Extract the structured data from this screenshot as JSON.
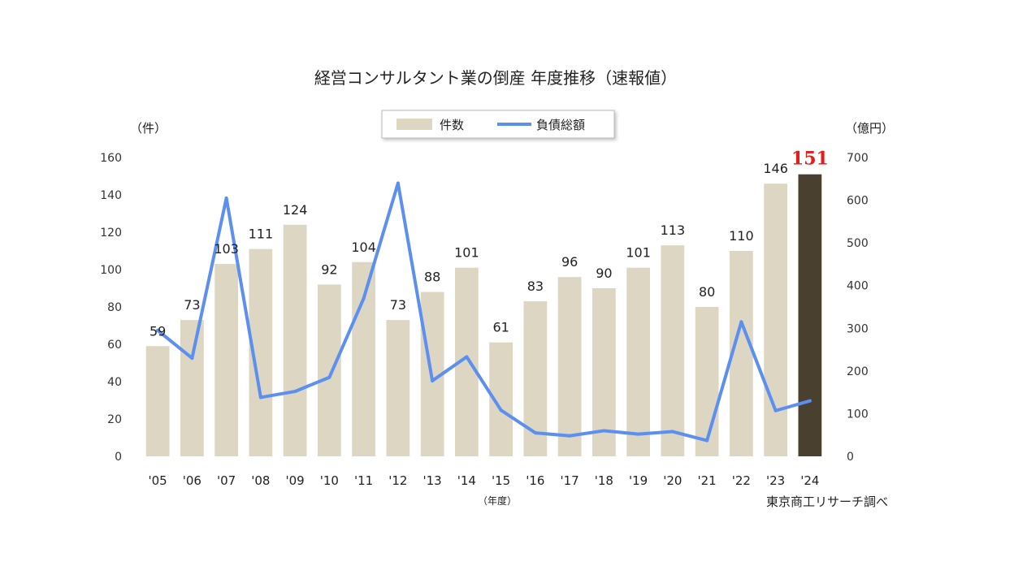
{
  "chart_data": {
    "type": "bar+line",
    "title": "経営コンサルタント業の倒産 年度推移（速報値）",
    "left_axis_unit": "（件）",
    "right_axis_unit": "（億円）",
    "x_unit": "（年度）",
    "source": "東京商工リサーチ調べ",
    "categories": [
      "'05",
      "'06",
      "'07",
      "'08",
      "'09",
      "'10",
      "'11",
      "'12",
      "'13",
      "'14",
      "'15",
      "'16",
      "'17",
      "'18",
      "'19",
      "'20",
      "'21",
      "'22",
      "'23",
      "'24"
    ],
    "series": [
      {
        "name": "件数",
        "type": "bar",
        "axis": "left",
        "color": "#ddd6c2",
        "highlight_color": "#4a4030",
        "highlight_index": 19,
        "values": [
          59,
          73,
          103,
          111,
          124,
          92,
          104,
          73,
          88,
          101,
          61,
          83,
          96,
          90,
          101,
          113,
          80,
          110,
          146,
          151
        ],
        "labels": [
          "59",
          "73",
          "103",
          "111",
          "124",
          "92",
          "104",
          "73",
          "88",
          "101",
          "61",
          "83",
          "96",
          "90",
          "101",
          "113",
          "80",
          "110",
          "146",
          "151"
        ]
      },
      {
        "name": "負債総額",
        "type": "line",
        "axis": "right",
        "color": "#5b8ff0",
        "values": [
          295,
          230,
          605,
          138,
          152,
          185,
          370,
          640,
          177,
          233,
          108,
          55,
          48,
          60,
          52,
          58,
          37,
          315,
          107,
          130
        ]
      }
    ],
    "left_axis": {
      "min": 0,
      "max": 160,
      "ticks": [
        "0",
        "20",
        "40",
        "60",
        "80",
        "100",
        "120",
        "140",
        "160"
      ]
    },
    "right_axis": {
      "min": 0,
      "max": 700,
      "ticks": [
        "0",
        "100",
        "200",
        "300",
        "400",
        "500",
        "600",
        "700"
      ]
    },
    "legend_position": "top-center",
    "grid": false
  }
}
